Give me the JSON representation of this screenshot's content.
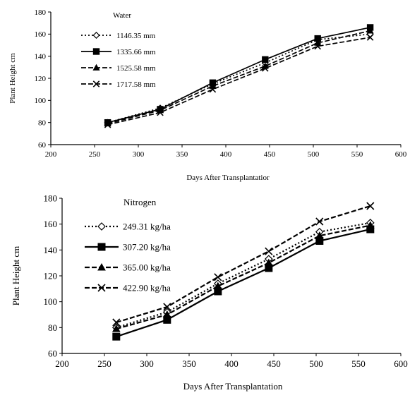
{
  "chart_data": [
    {
      "type": "line",
      "legend_title": "Water",
      "xlabel": "Days After Transplantatior",
      "ylabel": "Plant Height cm",
      "xlim": [
        200,
        600
      ],
      "ylim": [
        60,
        180
      ],
      "xticks": [
        200,
        250,
        300,
        350,
        400,
        450,
        500,
        550,
        600
      ],
      "yticks": [
        60,
        80,
        100,
        120,
        140,
        160,
        180
      ],
      "x": [
        265,
        325,
        385,
        445,
        505,
        565
      ],
      "legend_placement": "top-left",
      "grid": false,
      "series": [
        {
          "name": "1146.35 mm",
          "marker": "diamond-open",
          "dash": "dot",
          "values": [
            80,
            93,
            115,
            134,
            155,
            160
          ]
        },
        {
          "name": "1335.66 mm",
          "marker": "square",
          "dash": "solid",
          "values": [
            80,
            92,
            116,
            137,
            156,
            166
          ]
        },
        {
          "name": "1525.58 mm",
          "marker": "triangle",
          "dash": "dash",
          "values": [
            79,
            91,
            113,
            131,
            152,
            163
          ]
        },
        {
          "name": "1717.58 mm",
          "marker": "x",
          "dash": "dash",
          "values": [
            78,
            89,
            110,
            129,
            149,
            157
          ]
        }
      ]
    },
    {
      "type": "line",
      "legend_title": "Nitrogen",
      "xlabel": "Days After Transplantation",
      "ylabel": "Plant Height cm",
      "xlim": [
        200,
        600
      ],
      "ylim": [
        60,
        180
      ],
      "xticks": [
        200,
        250,
        300,
        350,
        400,
        450,
        500,
        550,
        600
      ],
      "yticks": [
        60,
        80,
        100,
        120,
        140,
        160,
        180
      ],
      "x": [
        264,
        324,
        384,
        444,
        504,
        564
      ],
      "legend_placement": "top-left",
      "grid": false,
      "series": [
        {
          "name": "249.31 kg/ha",
          "marker": "diamond-open",
          "dash": "dot",
          "values": [
            80,
            92,
            114,
            133,
            154,
            161
          ]
        },
        {
          "name": "307.20 kg/ha",
          "marker": "square",
          "dash": "solid",
          "values": [
            73,
            86,
            108,
            126,
            147,
            156
          ]
        },
        {
          "name": "365.00 kg/ha",
          "marker": "triangle",
          "dash": "dash",
          "values": [
            79,
            90,
            112,
            130,
            151,
            159
          ]
        },
        {
          "name": "422.90 kg/ha",
          "marker": "x",
          "dash": "dash",
          "values": [
            84,
            96,
            119,
            139,
            162,
            174
          ]
        }
      ]
    }
  ]
}
